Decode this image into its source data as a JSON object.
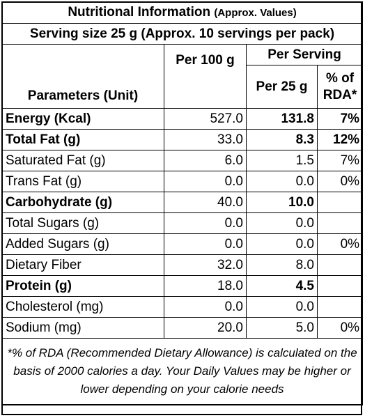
{
  "title": {
    "main": "Nutritional Information",
    "note": "(Approx. Values)"
  },
  "serving": "Serving size 25 g (Approx. 10 servings per pack)",
  "headers": {
    "param": "Parameters (Unit)",
    "per100": "Per 100 g",
    "per_serving": "Per Serving",
    "per25": "Per 25 g",
    "rda": "% of RDA*"
  },
  "rows": [
    {
      "name": "Energy (Kcal)",
      "per100": "527.0",
      "per25": "131.8",
      "rda": "7%",
      "bold": true
    },
    {
      "name": "Total Fat (g)",
      "per100": "33.0",
      "per25": "8.3",
      "rda": "12%",
      "bold": true
    },
    {
      "name": "Saturated Fat (g)",
      "per100": "6.0",
      "per25": "1.5",
      "rda": "7%",
      "bold": false
    },
    {
      "name": "Trans Fat (g)",
      "per100": "0.0",
      "per25": "0.0",
      "rda": "0%",
      "bold": false
    },
    {
      "name": "Carbohydrate (g)",
      "per100": "40.0",
      "per25": "10.0",
      "rda": "",
      "bold": true
    },
    {
      "name": "Total Sugars (g)",
      "per100": "0.0",
      "per25": "0.0",
      "rda": "",
      "bold": false
    },
    {
      "name": "Added Sugars (g)",
      "per100": "0.0",
      "per25": "0.0",
      "rda": "0%",
      "bold": false
    },
    {
      "name": "Dietary Fiber",
      "per100": "32.0",
      "per25": "8.0",
      "rda": "",
      "bold": false
    },
    {
      "name": "Protein (g)",
      "per100": "18.0",
      "per25": "4.5",
      "rda": "",
      "bold": true
    },
    {
      "name": "Cholesterol (mg)",
      "per100": "0.0",
      "per25": "0.0",
      "rda": "",
      "bold": false
    },
    {
      "name": "Sodium (mg)",
      "per100": "20.0",
      "per25": "5.0",
      "rda": "0%",
      "bold": false
    }
  ],
  "footnote": "*% of RDA (Recommended Dietary Allowance) is calculated on the basis of 2000 calories a day. Your Daily Values may be higher or lower depending on your calorie needs"
}
